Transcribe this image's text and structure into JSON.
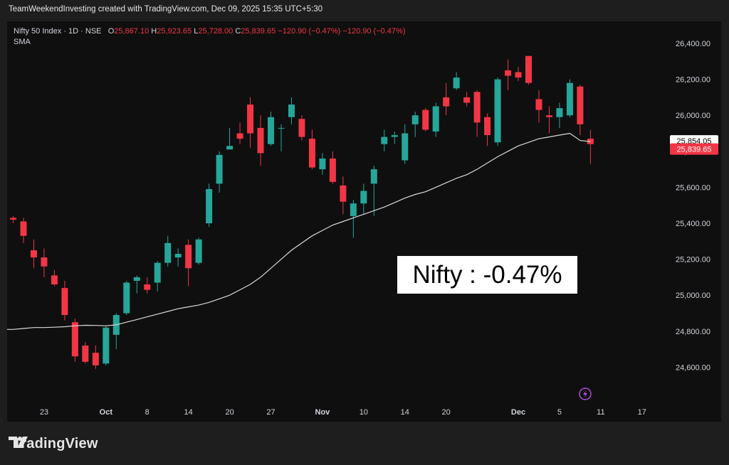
{
  "header": {
    "attribution": "TeamWeekendInvesting created with TradingView.com, Dec 09, 2025 15:35 UTC+5:30"
  },
  "legend": {
    "symbol": "Nifty 50 Index · 1D · NSE",
    "o_label": "O",
    "o_value": "25,867.10",
    "h_label": "H",
    "h_value": "25,923.65",
    "l_label": "L",
    "l_value": "25,728.00",
    "c_label": "C",
    "c_value": "25,839.65",
    "change": "−120.90 (−0.47%)",
    "change2": "−120.90 (−0.47%)",
    "indicator": "SMA"
  },
  "annotation": "Nifty : -0.47%",
  "price_labels": {
    "sma_value": "25,854.05",
    "last_close": "25,839.65"
  },
  "branding": {
    "logo_text": "TradingView",
    "logo_icon": "tradingview-logo-icon"
  },
  "colors": {
    "up": "#26a69a",
    "down": "#f23645",
    "sma": "#d9d9d9",
    "background": "#0f0f0f"
  },
  "chart_data": {
    "type": "candlestick",
    "y_ticks": [
      {
        "value": 26400,
        "label": "26,400.00"
      },
      {
        "value": 26200,
        "label": "26,200.00"
      },
      {
        "value": 26000,
        "label": "26,000.00"
      },
      {
        "value": 25800,
        "label": "25,800.00"
      },
      {
        "value": 25600,
        "label": "25,600.00"
      },
      {
        "value": 25400,
        "label": "25,400.00"
      },
      {
        "value": 25200,
        "label": "25,200.00"
      },
      {
        "value": 25000,
        "label": "25,000.00"
      },
      {
        "value": 24800,
        "label": "24,800.00"
      },
      {
        "value": 24600,
        "label": "24,600.00"
      }
    ],
    "ylim": [
      24420,
      26500
    ],
    "x_ticks": [
      {
        "index": 3,
        "label": "23",
        "bold": false
      },
      {
        "index": 9,
        "label": "Oct",
        "bold": true
      },
      {
        "index": 13,
        "label": "8",
        "bold": false
      },
      {
        "index": 17,
        "label": "14",
        "bold": false
      },
      {
        "index": 21,
        "label": "20",
        "bold": false
      },
      {
        "index": 25,
        "label": "27",
        "bold": false
      },
      {
        "index": 30,
        "label": "Nov",
        "bold": true
      },
      {
        "index": 34,
        "label": "10",
        "bold": false
      },
      {
        "index": 38,
        "label": "14",
        "bold": false
      },
      {
        "index": 42,
        "label": "20",
        "bold": false
      },
      {
        "index": 49,
        "label": "Dec",
        "bold": true
      },
      {
        "index": 53,
        "label": "5",
        "bold": false
      },
      {
        "index": 57,
        "label": "11",
        "bold": false
      },
      {
        "index": 61,
        "label": "17",
        "bold": false
      }
    ],
    "candles": [
      {
        "o": 25430,
        "h": 25440,
        "l": 25400,
        "c": 25420
      },
      {
        "o": 25410,
        "h": 25430,
        "l": 25290,
        "c": 25330
      },
      {
        "o": 25250,
        "h": 25310,
        "l": 25150,
        "c": 25210
      },
      {
        "o": 25210,
        "h": 25260,
        "l": 25100,
        "c": 25160
      },
      {
        "o": 25110,
        "h": 25140,
        "l": 25050,
        "c": 25060
      },
      {
        "o": 25040,
        "h": 25080,
        "l": 24860,
        "c": 24890
      },
      {
        "o": 24850,
        "h": 24870,
        "l": 24630,
        "c": 24660
      },
      {
        "o": 24720,
        "h": 24740,
        "l": 24620,
        "c": 24630
      },
      {
        "o": 24680,
        "h": 24720,
        "l": 24590,
        "c": 24610
      },
      {
        "o": 24620,
        "h": 24830,
        "l": 24610,
        "c": 24820
      },
      {
        "o": 24780,
        "h": 24900,
        "l": 24700,
        "c": 24890
      },
      {
        "o": 24900,
        "h": 25080,
        "l": 24890,
        "c": 25070
      },
      {
        "o": 25080,
        "h": 25110,
        "l": 25010,
        "c": 25100
      },
      {
        "o": 25060,
        "h": 25100,
        "l": 25010,
        "c": 25030
      },
      {
        "o": 25070,
        "h": 25190,
        "l": 25020,
        "c": 25180
      },
      {
        "o": 25180,
        "h": 25330,
        "l": 25160,
        "c": 25290
      },
      {
        "o": 25210,
        "h": 25260,
        "l": 25160,
        "c": 25230
      },
      {
        "o": 25280,
        "h": 25310,
        "l": 25050,
        "c": 25150
      },
      {
        "o": 25180,
        "h": 25320,
        "l": 25170,
        "c": 25310
      },
      {
        "o": 25400,
        "h": 25620,
        "l": 25380,
        "c": 25590
      },
      {
        "o": 25620,
        "h": 25800,
        "l": 25570,
        "c": 25780
      },
      {
        "o": 25810,
        "h": 25930,
        "l": 25820,
        "c": 25830
      },
      {
        "o": 25900,
        "h": 25960,
        "l": 25840,
        "c": 25870
      },
      {
        "o": 26060,
        "h": 26100,
        "l": 25820,
        "c": 25900
      },
      {
        "o": 25930,
        "h": 26000,
        "l": 25720,
        "c": 25790
      },
      {
        "o": 25840,
        "h": 26020,
        "l": 25830,
        "c": 25990
      },
      {
        "o": 25930,
        "h": 25950,
        "l": 25800,
        "c": 25930
      },
      {
        "o": 25990,
        "h": 26100,
        "l": 25950,
        "c": 26060
      },
      {
        "o": 25980,
        "h": 26000,
        "l": 25860,
        "c": 25880
      },
      {
        "o": 25870,
        "h": 25920,
        "l": 25700,
        "c": 25710
      },
      {
        "o": 25700,
        "h": 25790,
        "l": 25670,
        "c": 25760
      },
      {
        "o": 25760,
        "h": 25800,
        "l": 25620,
        "c": 25630
      },
      {
        "o": 25610,
        "h": 25660,
        "l": 25450,
        "c": 25520
      },
      {
        "o": 25440,
        "h": 25530,
        "l": 25320,
        "c": 25510
      },
      {
        "o": 25510,
        "h": 25620,
        "l": 25450,
        "c": 25580
      },
      {
        "o": 25620,
        "h": 25720,
        "l": 25440,
        "c": 25700
      },
      {
        "o": 25840,
        "h": 25920,
        "l": 25800,
        "c": 25880
      },
      {
        "o": 25880,
        "h": 25910,
        "l": 25840,
        "c": 25890
      },
      {
        "o": 25750,
        "h": 25950,
        "l": 25730,
        "c": 25900
      },
      {
        "o": 25950,
        "h": 26020,
        "l": 25880,
        "c": 26000
      },
      {
        "o": 26030,
        "h": 26040,
        "l": 25910,
        "c": 25920
      },
      {
        "o": 25910,
        "h": 26070,
        "l": 25880,
        "c": 26050
      },
      {
        "o": 26100,
        "h": 26180,
        "l": 26000,
        "c": 26050
      },
      {
        "o": 26150,
        "h": 26240,
        "l": 26140,
        "c": 26210
      },
      {
        "o": 26100,
        "h": 26130,
        "l": 26050,
        "c": 26070
      },
      {
        "o": 26130,
        "h": 26140,
        "l": 25880,
        "c": 25960
      },
      {
        "o": 25990,
        "h": 26010,
        "l": 25830,
        "c": 25890
      },
      {
        "o": 25850,
        "h": 26210,
        "l": 25830,
        "c": 26200
      },
      {
        "o": 26250,
        "h": 26310,
        "l": 26140,
        "c": 26220
      },
      {
        "o": 26240,
        "h": 26270,
        "l": 26190,
        "c": 26210
      },
      {
        "o": 26330,
        "h": 26330,
        "l": 26170,
        "c": 26180
      },
      {
        "o": 26090,
        "h": 26140,
        "l": 25960,
        "c": 26030
      },
      {
        "o": 26000,
        "h": 26050,
        "l": 25900,
        "c": 25990
      },
      {
        "o": 25990,
        "h": 26070,
        "l": 25930,
        "c": 26040
      },
      {
        "o": 26000,
        "h": 26200,
        "l": 25990,
        "c": 26180
      },
      {
        "o": 26160,
        "h": 26170,
        "l": 25890,
        "c": 25950
      },
      {
        "o": 25870,
        "h": 25920,
        "l": 25730,
        "c": 25840
      }
    ],
    "sma": [
      24810,
      24815,
      24820,
      24820,
      24822,
      24825,
      24830,
      24833,
      24832,
      24830,
      24835,
      24850,
      24865,
      24880,
      24895,
      24910,
      24925,
      24935,
      24945,
      24960,
      24980,
      25000,
      25030,
      25060,
      25100,
      25150,
      25200,
      25250,
      25290,
      25330,
      25360,
      25390,
      25410,
      25430,
      25450,
      25470,
      25490,
      25515,
      25540,
      25560,
      25575,
      25600,
      25625,
      25650,
      25670,
      25700,
      25735,
      25770,
      25800,
      25830,
      25850,
      25870,
      25880,
      25890,
      25900,
      25860,
      25854
    ]
  }
}
